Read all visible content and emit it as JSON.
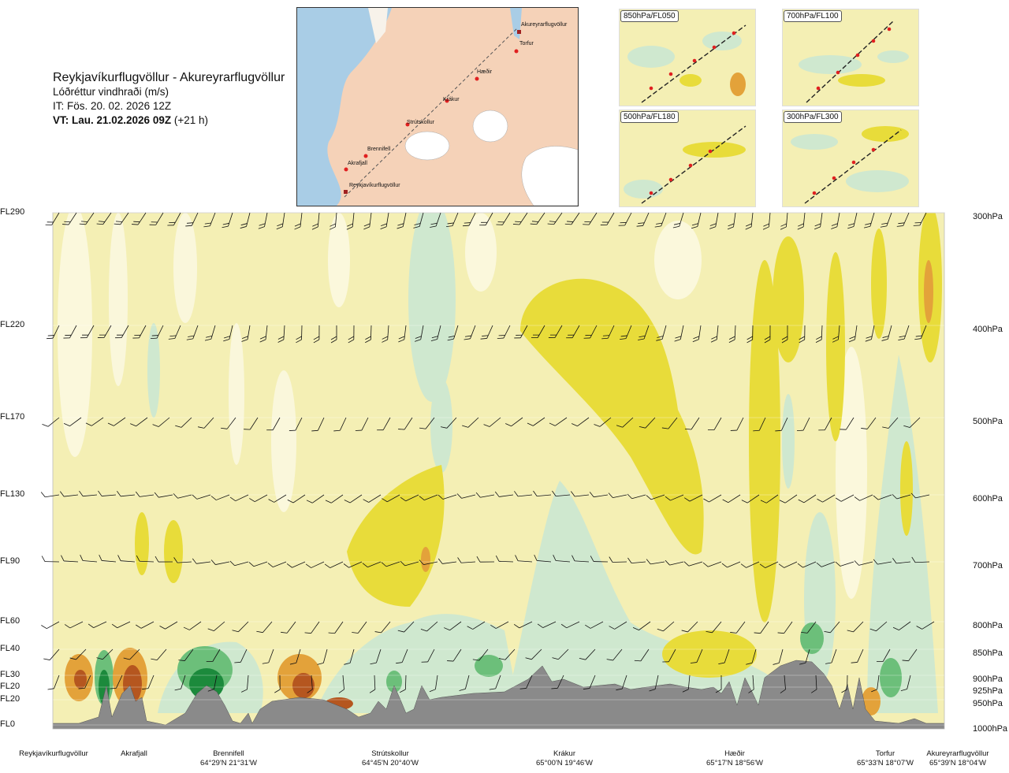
{
  "header": {
    "route": "Reykjavíkurflugvöllur - Akureyrarflugvöllur",
    "quantity": "Lóðréttur vindhraði (m/s)",
    "issue_time": "IT: Fös. 20. 02. 2026 12Z",
    "valid_time_bold": "VT: Lau. 21.02.2026 09Z",
    "valid_time_offset": " (+21 h)"
  },
  "map": {
    "places": [
      {
        "name": "Akureyrarflugvöllur"
      },
      {
        "name": "Torfur"
      },
      {
        "name": "Hæðir"
      },
      {
        "name": "Krákur"
      },
      {
        "name": "Strútskollur"
      },
      {
        "name": "Brennifell"
      },
      {
        "name": "Akrafjall"
      },
      {
        "name": "Reykjavíkurflugvöllur"
      }
    ]
  },
  "insets": [
    {
      "label": "850hPa/FL050"
    },
    {
      "label": "700hPa/FL100"
    },
    {
      "label": "500hPa/FL180"
    },
    {
      "label": "300hPa/FL300"
    }
  ],
  "chart_data": {
    "type": "heatmap",
    "title": "Lóðréttur vindhraði (m/s)",
    "flight_levels": [
      "FL290",
      "FL220",
      "FL170",
      "FL130",
      "FL90",
      "FL60",
      "FL40",
      "FL30",
      "FL20",
      "FL20",
      "FL0"
    ],
    "pressure_levels": [
      "300hPa",
      "400hPa",
      "500hPa",
      "600hPa",
      "700hPa",
      "800hPa",
      "850hPa",
      "900hPa",
      "925hPa",
      "950hPa",
      "1000hPa"
    ],
    "x_points": [
      {
        "name": "Reykjavíkurflugvöllur",
        "coord": ""
      },
      {
        "name": "Akrafjall",
        "coord": ""
      },
      {
        "name": "Brennifell",
        "coord": "64°29'N 21°31'W"
      },
      {
        "name": "Strútskollur",
        "coord": "64°45'N 20°40'W"
      },
      {
        "name": "Krákur",
        "coord": "65°00'N 19°46'W"
      },
      {
        "name": "Hæðir",
        "coord": "65°17'N 18°56'W"
      },
      {
        "name": "Torfur",
        "coord": "65°33'N 18°07'W"
      },
      {
        "name": "Akureyrarflugvöllur",
        "coord": "65°39'N 18°04'W"
      }
    ],
    "colors": {
      "strong_sink": "#1c8a3c",
      "sink": "#6cbf7a",
      "weak_sink": "#cfe8cf",
      "neutral": "#f4efb4",
      "weak_rise": "#e8dc3a",
      "rise": "#e3a23a",
      "strong_rise": "#b5561f",
      "terrain": "#8a8a8a"
    }
  }
}
